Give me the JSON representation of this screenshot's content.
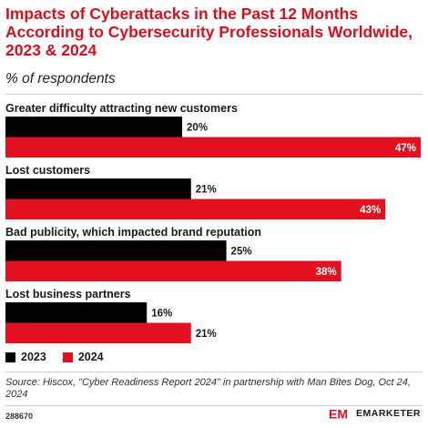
{
  "header": {
    "title": "Impacts of Cyberattacks in the Past 12 Months According to Cybersecurity Professionals Worldwide, 2023 & 2024",
    "subtitle": "% of respondents"
  },
  "colors": {
    "series_2023": "#000000",
    "series_2024": "#e3101f",
    "title": "#d90f1c"
  },
  "chart_data": {
    "type": "bar",
    "orientation": "horizontal",
    "categories": [
      "Greater difficulty attracting new customers",
      "Lost customers",
      "Bad publicity, which impacted brand reputation",
      "Lost business partners"
    ],
    "series": [
      {
        "name": "2023",
        "values": [
          20,
          21,
          25,
          16
        ],
        "labels": [
          "20%",
          "21%",
          "25%",
          "16%"
        ]
      },
      {
        "name": "2024",
        "values": [
          47,
          43,
          38,
          21
        ],
        "labels": [
          "47%",
          "43%",
          "38%",
          "21%"
        ]
      }
    ],
    "xlim": [
      0,
      47
    ],
    "legend_position": "bottom-left",
    "grid": false
  },
  "footer": {
    "source": "Source: Hiscox, \"Cyber Readiness Report 2024\" in partnership with Man Bites Dog, Oct 24, 2024",
    "chart_id": "288670",
    "brand_mark": "EM",
    "brand_name": "EMARKETER"
  }
}
